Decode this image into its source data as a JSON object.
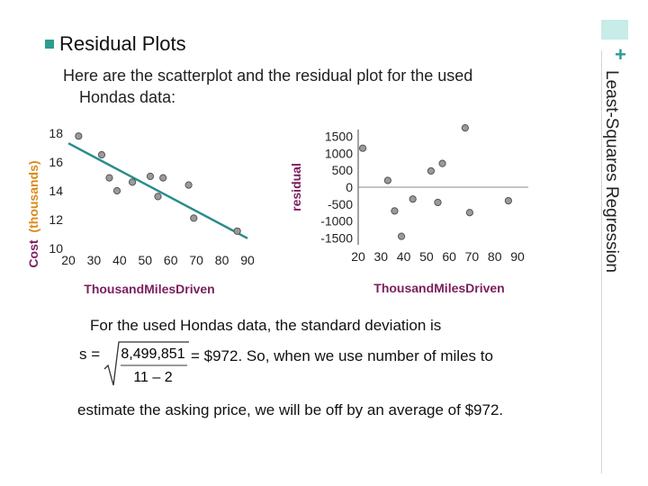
{
  "slide": {
    "heading": "Residual Plots",
    "intro_line1": "Here are the scatterplot and the residual plot for the used",
    "intro_line2": "Hondas data:",
    "side_title": "Least-Squares Regression",
    "plus": "+",
    "accent_color": "#2a9d8f"
  },
  "body": {
    "para1": "For the used Hondas data, the standard deviation is",
    "s_label": "s =",
    "numerator": "8,499,851",
    "denominator": "11 – 2",
    "para1_tail": "= $972.  So, when we use number of miles to",
    "para2": "estimate the asking price, we will be off by an average of $972."
  },
  "chart_data": [
    {
      "type": "scatter",
      "xlabel": "ThousandMilesDriven",
      "ylabel": "Cost (thousands)",
      "ylabel_parts": [
        "Cost",
        "(thousands)"
      ],
      "xlim": [
        20,
        90
      ],
      "ylim": [
        10,
        18
      ],
      "x_ticks": [
        20,
        30,
        40,
        50,
        60,
        70,
        80,
        90
      ],
      "y_ticks": [
        10,
        12,
        14,
        16,
        18
      ],
      "points": [
        {
          "x": 24,
          "y": 17.8
        },
        {
          "x": 33,
          "y": 16.5
        },
        {
          "x": 36,
          "y": 14.9
        },
        {
          "x": 39,
          "y": 14.0
        },
        {
          "x": 45,
          "y": 14.6
        },
        {
          "x": 52,
          "y": 15.0
        },
        {
          "x": 55,
          "y": 13.6
        },
        {
          "x": 57,
          "y": 14.9
        },
        {
          "x": 67,
          "y": 14.4
        },
        {
          "x": 69,
          "y": 12.1
        },
        {
          "x": 86,
          "y": 11.2
        }
      ],
      "regression_line": {
        "x": [
          20,
          90
        ],
        "y": [
          17.3,
          10.7
        ]
      },
      "line_color": "#2a8c8c",
      "label_color": "#7a1f5c"
    },
    {
      "type": "scatter",
      "xlabel": "ThousandMilesDriven",
      "ylabel": "residual",
      "xlim": [
        20,
        90
      ],
      "ylim": [
        -1700,
        1700
      ],
      "x_ticks": [
        20,
        30,
        40,
        50,
        60,
        70,
        80,
        90
      ],
      "y_ticks": [
        1500,
        1000,
        500,
        0,
        -500,
        -1000,
        -1500
      ],
      "points": [
        {
          "x": 22,
          "y": 1150
        },
        {
          "x": 33,
          "y": 200
        },
        {
          "x": 36,
          "y": -700
        },
        {
          "x": 39,
          "y": -1450
        },
        {
          "x": 44,
          "y": -350
        },
        {
          "x": 52,
          "y": 480
        },
        {
          "x": 55,
          "y": -450
        },
        {
          "x": 57,
          "y": 700
        },
        {
          "x": 67,
          "y": 1750
        },
        {
          "x": 69,
          "y": -750
        },
        {
          "x": 86,
          "y": -400
        }
      ],
      "zero_line": true,
      "label_color": "#7a1f5c"
    }
  ]
}
